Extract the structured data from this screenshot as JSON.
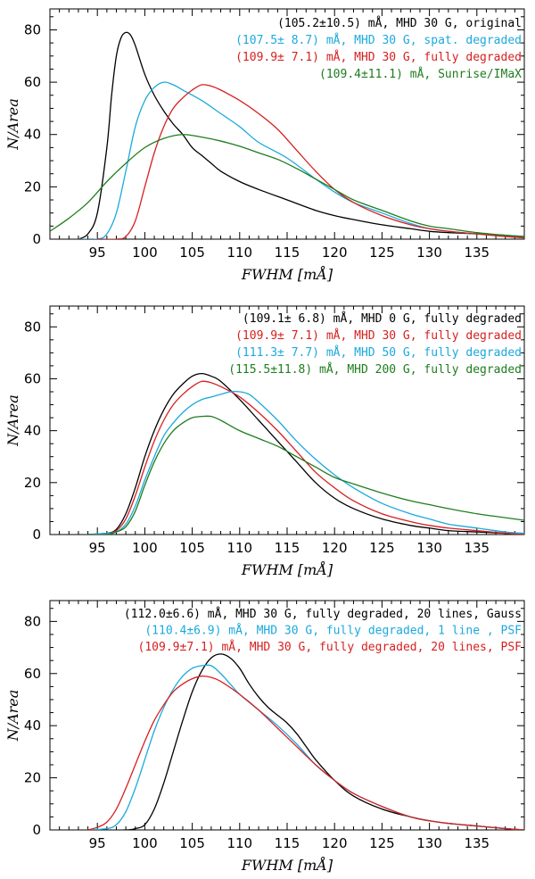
{
  "chart_data": [
    {
      "type": "line",
      "panel": "top",
      "xlabel": "FWHM [mÅ]",
      "ylabel": "N/Area",
      "xlim": [
        90,
        140
      ],
      "ylim": [
        0,
        88
      ],
      "xticks": [
        95,
        100,
        105,
        110,
        115,
        120,
        125,
        130,
        135
      ],
      "yticks": [
        0,
        20,
        40,
        60,
        80
      ],
      "legend_position": "top-right",
      "series": [
        {
          "name": "(105.2±10.5) mÅ, MHD 30 G, original",
          "color": "#000000",
          "x": [
            93,
            94,
            95,
            96,
            96.5,
            97,
            97.5,
            98,
            98.5,
            99,
            100,
            101,
            102,
            103,
            104,
            105,
            106,
            107,
            108,
            110,
            112,
            115,
            118,
            120,
            122,
            125,
            128,
            130,
            132,
            135,
            138,
            140
          ],
          "y": [
            0,
            2,
            10,
            35,
            55,
            70,
            77,
            79,
            78,
            74,
            63,
            55,
            49,
            44,
            40,
            35,
            32,
            29,
            26,
            22,
            19,
            15,
            11,
            9,
            7.5,
            5.5,
            4,
            3,
            2.5,
            2,
            1.5,
            1
          ]
        },
        {
          "name": "(107.5± 8.7) mÅ, MHD 30 G, spat. degraded",
          "color": "#1ba9dc",
          "x": [
            93,
            95,
            96,
            97,
            98,
            99,
            100,
            101,
            102,
            103,
            104,
            106,
            108,
            110,
            112,
            115,
            118,
            120,
            122,
            125,
            128,
            130,
            132,
            135,
            138,
            140
          ],
          "y": [
            0,
            0,
            2,
            10,
            26,
            43,
            53,
            58,
            60,
            59,
            57,
            53,
            48,
            43,
            37,
            31,
            23,
            18,
            14,
            10,
            6,
            4,
            3,
            2,
            1.5,
            1
          ]
        },
        {
          "name": "(109.9± 7.1) mÅ, MHD 30 G, fully degraded",
          "color": "#d71f1f",
          "x": [
            95,
            97,
            98,
            99,
            100,
            101,
            102,
            103,
            104,
            105,
            106,
            107,
            108,
            110,
            112,
            114,
            116,
            118,
            120,
            122,
            125,
            128,
            130,
            132,
            135,
            138,
            140
          ],
          "y": [
            0,
            0,
            1,
            7,
            20,
            33,
            43,
            50,
            54,
            57,
            59,
            58.5,
            57,
            53,
            48,
            42,
            34,
            26,
            19,
            14,
            9,
            5.5,
            4,
            3,
            2,
            1,
            0.5
          ]
        },
        {
          "name": "(109.4±11.1) mÅ, Sunrise/IMaX",
          "color": "#1e7d1e",
          "x": [
            90,
            92,
            94,
            96,
            98,
            100,
            102,
            104,
            106,
            108,
            110,
            112,
            114,
            116,
            118,
            120,
            122,
            125,
            128,
            130,
            132,
            135,
            138,
            140
          ],
          "y": [
            3,
            8,
            14,
            22,
            29,
            35,
            38.5,
            40,
            39,
            37.5,
            35.5,
            33,
            30.5,
            27,
            23,
            19,
            15,
            11,
            7,
            5,
            4,
            2.5,
            1.5,
            1
          ]
        }
      ]
    },
    {
      "type": "line",
      "panel": "middle",
      "xlabel": "FWHM [mÅ]",
      "ylabel": "N/Area",
      "xlim": [
        90,
        140
      ],
      "ylim": [
        0,
        88
      ],
      "xticks": [
        95,
        100,
        105,
        110,
        115,
        120,
        125,
        130,
        135
      ],
      "yticks": [
        0,
        20,
        40,
        60,
        80
      ],
      "legend_position": "top-right",
      "series": [
        {
          "name": "(109.1± 6.8) mÅ, MHD 0 G, fully degraded",
          "color": "#000000",
          "x": [
            94,
            96,
            97,
            98,
            99,
            100,
            101,
            102,
            103,
            104,
            105,
            106,
            107,
            108,
            110,
            112,
            114,
            116,
            118,
            120,
            122,
            125,
            128,
            130,
            132,
            135,
            138,
            140
          ],
          "y": [
            0,
            0.5,
            2,
            8,
            18,
            30,
            40,
            48,
            54,
            58,
            61,
            62,
            61,
            59,
            52,
            44,
            36,
            28,
            20,
            14,
            10,
            6,
            3.5,
            2.5,
            1.5,
            1,
            0.5,
            0
          ]
        },
        {
          "name": "(109.9± 7.1) mÅ, MHD 30 G, fully degraded",
          "color": "#d71f1f",
          "x": [
            94,
            96,
            97,
            98,
            99,
            100,
            101,
            102,
            103,
            104,
            105,
            106,
            107,
            108,
            110,
            112,
            114,
            116,
            118,
            120,
            122,
            125,
            128,
            130,
            132,
            135,
            138,
            140
          ],
          "y": [
            0,
            0.5,
            1.5,
            6,
            15,
            26,
            36,
            44,
            50,
            54,
            57,
            59,
            58.5,
            57,
            53,
            47,
            40,
            32,
            24,
            18,
            13,
            8,
            5,
            3.5,
            2.5,
            1.5,
            0.5,
            0
          ]
        },
        {
          "name": "(111.3± 7.7) mÅ, MHD 50 G, fully degraded",
          "color": "#1ba9dc",
          "x": [
            94,
            96,
            97,
            98,
            99,
            100,
            101,
            102,
            103,
            104,
            105,
            106,
            107,
            108,
            109,
            110,
            111,
            112,
            114,
            116,
            118,
            120,
            122,
            125,
            128,
            130,
            132,
            135,
            138,
            140
          ],
          "y": [
            0,
            0.5,
            1,
            4,
            11,
            21,
            30,
            38,
            43,
            47,
            50,
            52,
            53,
            54,
            55,
            55,
            54,
            51,
            44,
            36,
            29,
            23,
            18,
            12,
            8,
            6,
            4,
            2.5,
            1,
            0.5
          ]
        },
        {
          "name": "(115.5±11.8) mÅ, MHD 200 G, fully degraded",
          "color": "#1e7d1e",
          "x": [
            94,
            96,
            97,
            98,
            99,
            100,
            101,
            102,
            103,
            104,
            105,
            106,
            107,
            108,
            110,
            112,
            114,
            116,
            118,
            120,
            122,
            125,
            128,
            130,
            132,
            135,
            138,
            140
          ],
          "y": [
            0,
            0,
            1,
            3,
            9,
            19,
            28,
            35,
            40,
            43,
            45,
            45.5,
            45.5,
            44,
            40,
            37,
            34,
            30,
            26,
            22,
            19.5,
            16,
            13,
            11.5,
            10,
            8,
            6.5,
            5.5
          ]
        }
      ]
    },
    {
      "type": "line",
      "panel": "bottom",
      "xlabel": "FWHM [mÅ]",
      "ylabel": "N/Area",
      "xlim": [
        90,
        140
      ],
      "ylim": [
        0,
        88
      ],
      "xticks": [
        95,
        100,
        105,
        110,
        115,
        120,
        125,
        130,
        135
      ],
      "yticks": [
        0,
        20,
        40,
        60,
        80
      ],
      "legend_position": "top-right",
      "series": [
        {
          "name": "(112.0±6.6) mÅ, MHD 30 G, fully degraded, 20 lines, Gauss",
          "color": "#000000",
          "x": [
            94,
            98,
            99,
            100,
            101,
            102,
            103,
            104,
            105,
            106,
            107,
            108,
            109,
            110,
            111,
            112,
            113,
            114,
            115,
            116,
            117,
            118,
            120,
            122,
            125,
            128,
            130,
            132,
            135,
            138,
            140
          ],
          "y": [
            0,
            0,
            0.5,
            2,
            8,
            18,
            30,
            42,
            53,
            61,
            66,
            67.5,
            66,
            62,
            56,
            51,
            47,
            44,
            41,
            37,
            32,
            27,
            19,
            13,
            8,
            5,
            3.5,
            2.5,
            1.5,
            0.5,
            0
          ]
        },
        {
          "name": "(110.4±6.9) mÅ, MHD 30 G, fully degraded, 1 line, PSF",
          "color": "#1ba9dc",
          "x": [
            94,
            96,
            97,
            98,
            99,
            100,
            101,
            102,
            103,
            104,
            105,
            106,
            107,
            108,
            109,
            110,
            112,
            114,
            116,
            118,
            120,
            122,
            125,
            128,
            130,
            132,
            135,
            138,
            140
          ],
          "y": [
            0,
            0.5,
            2,
            7,
            16,
            27,
            38,
            47,
            54,
            59,
            62,
            63,
            63,
            60,
            56,
            52,
            46,
            40,
            33,
            25,
            19,
            14,
            9,
            5,
            3.5,
            2.5,
            1.5,
            0.5,
            0
          ]
        },
        {
          "name": "(109.9±7.1) mÅ, MHD 30 G, fully degraded, 20 lines, PSF",
          "color": "#d71f1f",
          "x": [
            94,
            95,
            96,
            97,
            98,
            99,
            100,
            101,
            102,
            103,
            104,
            105,
            106,
            107,
            108,
            110,
            112,
            114,
            116,
            118,
            120,
            122,
            125,
            128,
            130,
            132,
            135,
            138,
            140
          ],
          "y": [
            0,
            1,
            3,
            8,
            16,
            25,
            34,
            42,
            48,
            53,
            56,
            58,
            59,
            58.5,
            57,
            52,
            46,
            39,
            32,
            25,
            19,
            14,
            9,
            5,
            3.5,
            2.5,
            1.5,
            0.5,
            0
          ]
        }
      ]
    }
  ],
  "legend_lines": [
    [
      "(105.2±10.5) mÅ, MHD 30 G, original",
      "(107.5± 8.7) mÅ, MHD 30 G, spat. degraded",
      "(109.9± 7.1) mÅ, MHD 30 G, fully degraded",
      "(109.4±11.1) mÅ, Sunrise/IMaX"
    ],
    [
      "(109.1± 6.8) mÅ, MHD 0 G, fully degraded",
      "(109.9± 7.1) mÅ, MHD 30 G, fully degraded",
      "(111.3± 7.7) mÅ, MHD 50 G, fully degraded",
      "(115.5±11.8) mÅ, MHD 200 G, fully degraded"
    ],
    [
      "(112.0±6.6) mÅ, MHD 30 G, fully degraded, 20 lines, Gauss",
      "(110.4±6.9) mÅ, MHD 30 G, fully degraded, 1 line , PSF",
      "(109.9±7.1) mÅ, MHD 30 G, fully degraded, 20 lines, PSF"
    ]
  ]
}
